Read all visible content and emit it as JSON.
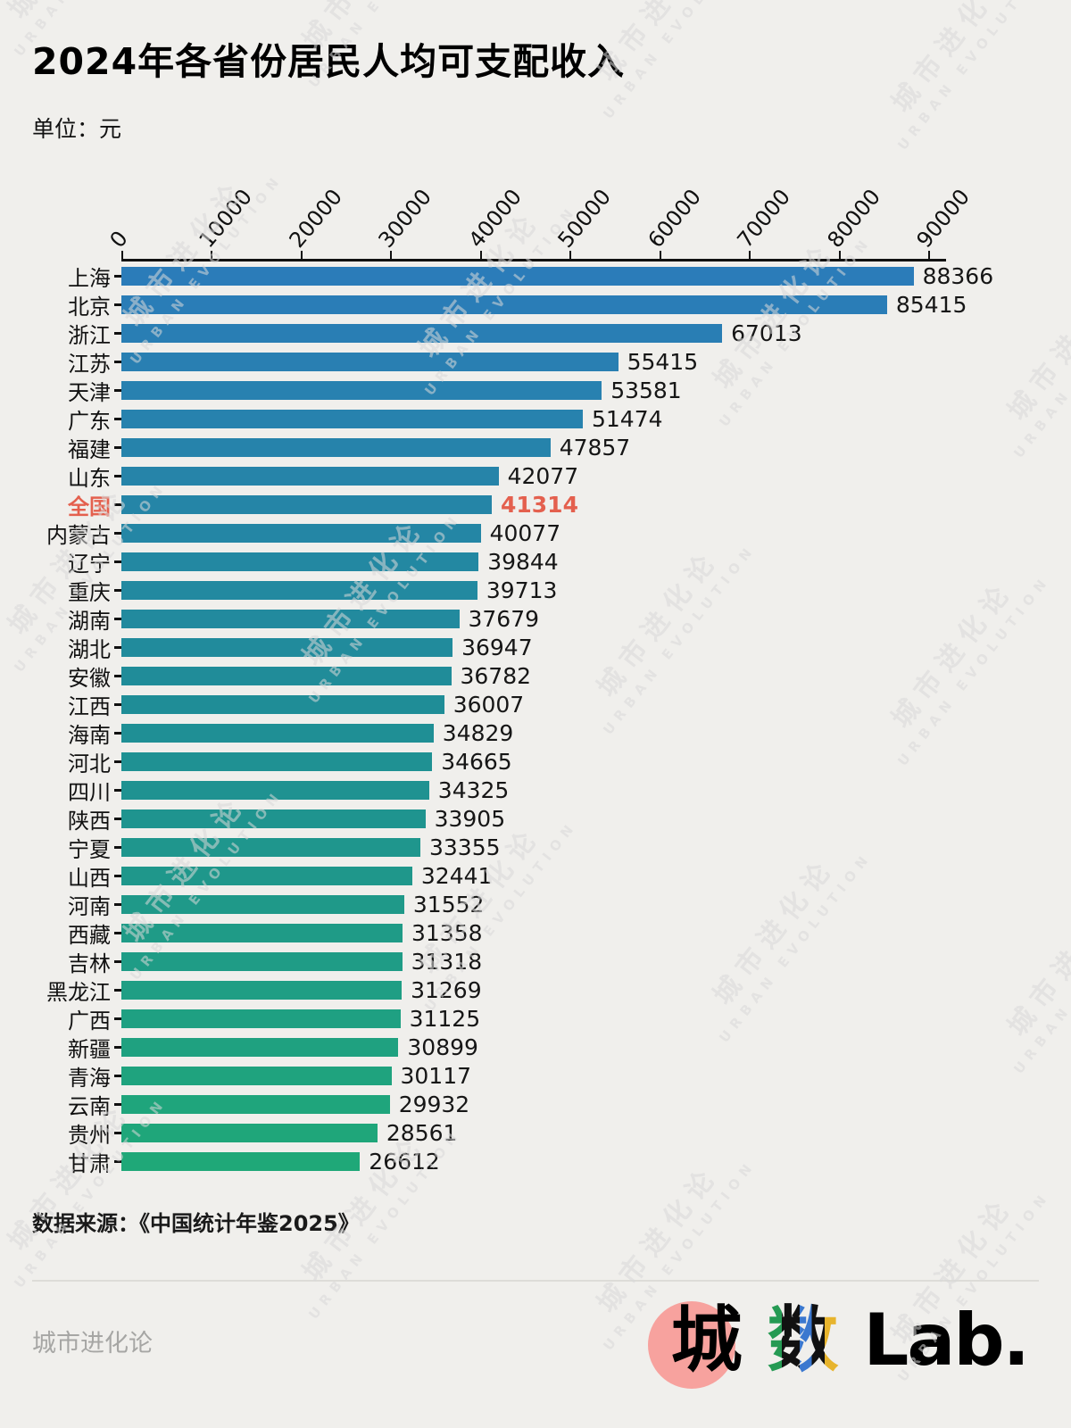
{
  "title": "2024年各省份居民人均可支配收入",
  "unit_label": "单位：元",
  "source": "数据来源：《中国统计年鉴2025》",
  "watermark": {
    "cn": "城市进化论",
    "en": "URBAN EVOLUTION"
  },
  "footer": {
    "left": "城市进化论",
    "logo_text_1": "城",
    "logo_text_2": "数",
    "logo_text_3": "Lab.",
    "logo_colors": {
      "circle": "#f7a29e",
      "green": "#259a53",
      "blue": "#3b78cf",
      "yellow": "#e7b42d",
      "ink": "#111111"
    }
  },
  "chart_data": {
    "type": "bar",
    "orientation": "horizontal",
    "title": "2024年各省份居民人均可支配收入",
    "unit": "元",
    "xlim": [
      0,
      95000
    ],
    "x_ticks": [
      0,
      10000,
      20000,
      30000,
      40000,
      50000,
      60000,
      70000,
      80000,
      90000
    ],
    "grid": false,
    "legend": "none",
    "categories": [
      "上海",
      "北京",
      "浙江",
      "江苏",
      "天津",
      "广东",
      "福建",
      "山东",
      "全国",
      "内蒙古",
      "辽宁",
      "重庆",
      "湖南",
      "湖北",
      "安徽",
      "江西",
      "海南",
      "河北",
      "四川",
      "陕西",
      "宁夏",
      "山西",
      "河南",
      "西藏",
      "吉林",
      "黑龙江",
      "广西",
      "新疆",
      "青海",
      "云南",
      "贵州",
      "甘肃"
    ],
    "values": [
      88366,
      85415,
      67013,
      55415,
      53581,
      51474,
      47857,
      42077,
      41314,
      40077,
      39844,
      39713,
      37679,
      36947,
      36782,
      36007,
      34829,
      34665,
      34325,
      33905,
      33355,
      32441,
      31552,
      31358,
      31318,
      31269,
      31125,
      30899,
      30117,
      29932,
      28561,
      26612
    ],
    "highlight_category": "全国",
    "colors": {
      "gradient_start": "#2b7cb9",
      "gradient_mid": "#1f8e96",
      "gradient_end": "#1fa878",
      "highlight_text": "#e4604e",
      "axis": "#111111",
      "background": "#f0efec"
    }
  }
}
